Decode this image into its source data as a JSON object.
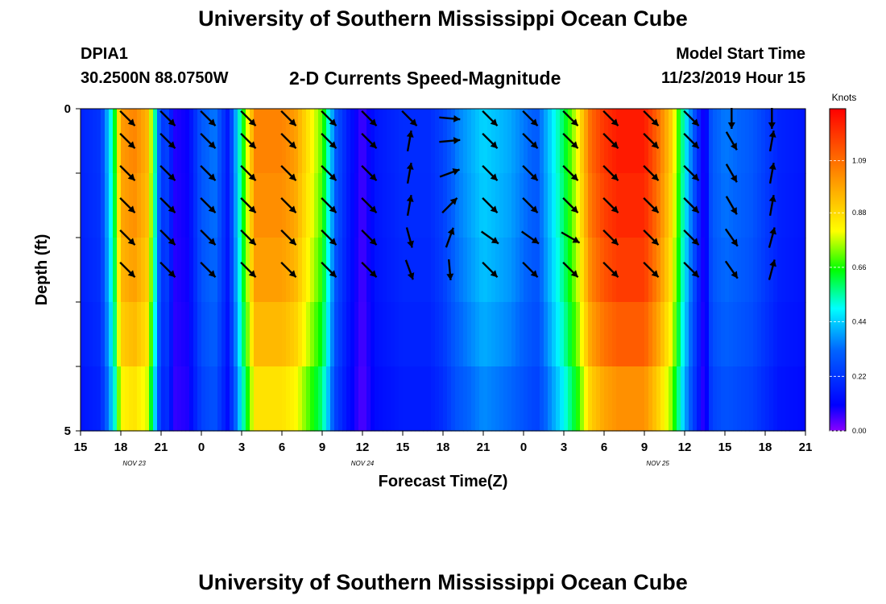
{
  "header": {
    "title": "University of Southern Mississippi Ocean Cube",
    "station_id": "DPIA1",
    "station_coords": "30.2500N 88.0750W",
    "plot_title": "2-D Currents Speed-Magnitude",
    "model_start_label": "Model Start Time",
    "model_start_value": "11/23/2019 Hour 15"
  },
  "footer": {
    "title": "University of Southern Mississippi Ocean Cube"
  },
  "chart_data": {
    "type": "heatmap",
    "title": "2-D Currents Speed-Magnitude",
    "xlabel": "Forecast Time(Z)",
    "ylabel": "Depth (ft)",
    "x_ticks": [
      "15",
      "18",
      "21",
      "0",
      "3",
      "6",
      "9",
      "12",
      "15",
      "18",
      "21",
      "0",
      "3",
      "6",
      "9",
      "12",
      "15",
      "18",
      "21"
    ],
    "date_labels": [
      {
        "hours": 4,
        "text": "NOV  23"
      },
      {
        "hours": 21,
        "text": "NOV  24"
      },
      {
        "hours": 43,
        "text": "NOV  25"
      }
    ],
    "x_range_hours": [
      0,
      54
    ],
    "y_ticks": [
      "0",
      "5"
    ],
    "ylim": [
      0,
      5
    ],
    "depth_rows": 5,
    "colorbar": {
      "label": "Knots",
      "ticks": [
        "1.09",
        "0.88",
        "0.66",
        "0.44",
        "0.22",
        "0.00"
      ],
      "range": [
        0.0,
        1.3
      ]
    },
    "speed_profile_hours": [
      0,
      1.5,
      2.5,
      3,
      4,
      5,
      6,
      6.5,
      7,
      8,
      9,
      10,
      11,
      12,
      13,
      15,
      16,
      18,
      19,
      20,
      21,
      22,
      24,
      26,
      27,
      28,
      30,
      32,
      34,
      35,
      36,
      37,
      38,
      39,
      40,
      42,
      43,
      44,
      45,
      46,
      46.5,
      47,
      48,
      50,
      52,
      54
    ],
    "speed_profile_knots": [
      0.18,
      0.22,
      0.6,
      1.0,
      1.05,
      0.95,
      0.22,
      0.25,
      0.08,
      0.1,
      0.3,
      0.35,
      0.15,
      0.6,
      1.05,
      1.05,
      1.0,
      0.7,
      0.3,
      0.15,
      0.05,
      0.15,
      0.2,
      0.2,
      0.25,
      0.35,
      0.45,
      0.4,
      0.3,
      0.45,
      0.6,
      0.8,
      1.1,
      1.2,
      1.25,
      1.25,
      1.1,
      0.9,
      0.5,
      0.2,
      0.05,
      0.3,
      0.35,
      0.3,
      0.18,
      0.15
    ],
    "depth_factors": [
      1.0,
      0.98,
      0.95,
      0.9,
      0.82,
      0.6
    ],
    "vector_hours": [
      3.5,
      6.5,
      9.5,
      12.5,
      15.5,
      18.5,
      21.5,
      24.5,
      27.5,
      30.5,
      33.5,
      36.5,
      39.5,
      42.5,
      45.5,
      48.5,
      51.5
    ],
    "vector_row_depths": [
      0.0,
      0.5,
      1.0,
      1.5,
      2.0,
      2.5
    ],
    "vector_directions_deg": [
      [
        135,
        135,
        135,
        135,
        135,
        135,
        135,
        135,
        95,
        135,
        135,
        135,
        135,
        135,
        135,
        180,
        180
      ],
      [
        135,
        135,
        135,
        135,
        135,
        135,
        135,
        10,
        85,
        135,
        135,
        135,
        135,
        135,
        135,
        150,
        10
      ],
      [
        135,
        135,
        135,
        135,
        135,
        135,
        135,
        10,
        70,
        135,
        135,
        135,
        135,
        135,
        135,
        150,
        10
      ],
      [
        135,
        135,
        135,
        135,
        135,
        135,
        135,
        10,
        45,
        135,
        135,
        135,
        135,
        135,
        135,
        150,
        10
      ],
      [
        135,
        135,
        135,
        135,
        135,
        135,
        135,
        165,
        20,
        125,
        125,
        120,
        135,
        135,
        135,
        145,
        15
      ],
      [
        135,
        135,
        135,
        135,
        135,
        135,
        135,
        160,
        175,
        135,
        135,
        135,
        135,
        135,
        135,
        145,
        15
      ]
    ]
  }
}
